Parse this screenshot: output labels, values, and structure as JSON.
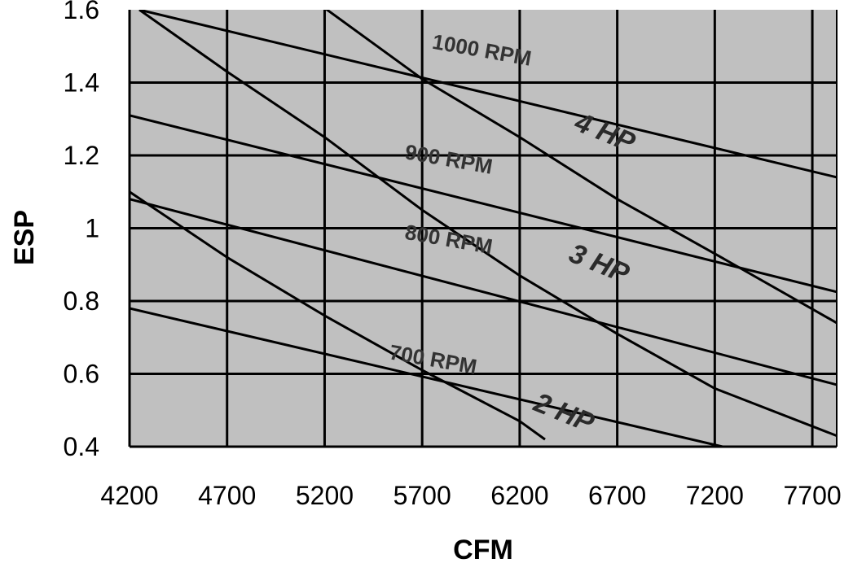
{
  "chart_data": {
    "type": "line",
    "xlabel": "CFM",
    "ylabel": "ESP",
    "xlim": [
      4200,
      7825
    ],
    "ylim": [
      0.4,
      1.6
    ],
    "x_ticks": [
      "4200",
      "4700",
      "5200",
      "5700",
      "6200",
      "6700",
      "7200",
      "7700"
    ],
    "x_tick_values": [
      4200,
      4700,
      5200,
      5700,
      6200,
      6700,
      7200,
      7700
    ],
    "y_ticks": [
      "0.4",
      "0.6",
      "0.8",
      "1",
      "1.2",
      "1.4",
      "1.6"
    ],
    "y_tick_values": [
      0.4,
      0.6,
      0.8,
      1.0,
      1.2,
      1.4,
      1.6
    ],
    "grid": true,
    "background": "#c0c0c0",
    "line_color": "#000000",
    "series": [
      {
        "name": "1000 RPM",
        "x": [
          4250,
          7825
        ],
        "y": [
          1.6,
          1.14
        ]
      },
      {
        "name": "900 RPM",
        "x": [
          4200,
          7825
        ],
        "y": [
          1.31,
          0.825
        ]
      },
      {
        "name": "800 RPM",
        "x": [
          4200,
          7825
        ],
        "y": [
          1.08,
          0.57
        ]
      },
      {
        "name": "700 RPM",
        "x": [
          4200,
          7240
        ],
        "y": [
          0.78,
          0.4
        ]
      },
      {
        "name": "4 HP",
        "x": [
          4200,
          4700,
          5200,
          5700,
          6200,
          6700,
          7200,
          7825
        ],
        "y": [
          1.915,
          1.62,
          1.605,
          1.41,
          1.25,
          1.08,
          0.93,
          0.74
        ]
      },
      {
        "name": "3 HP",
        "x": [
          4250,
          4700,
          5200,
          5700,
          6200,
          6700,
          7200,
          7825
        ],
        "y": [
          1.6,
          1.43,
          1.25,
          1.05,
          0.87,
          0.71,
          0.56,
          0.43
        ]
      },
      {
        "name": "2 HP",
        "x": [
          4200,
          4700,
          5200,
          5700,
          6200,
          6330
        ],
        "y": [
          1.1,
          0.92,
          0.76,
          0.61,
          0.47,
          0.42
        ]
      }
    ],
    "annotations": [
      {
        "text": "1000 RPM",
        "x": 6000,
        "y": 1.47,
        "kind": "rpm",
        "rotate": 10
      },
      {
        "text": "900 RPM",
        "x": 5830,
        "y": 1.17,
        "kind": "rpm",
        "rotate": 10
      },
      {
        "text": "800 RPM",
        "x": 5830,
        "y": 0.95,
        "kind": "rpm",
        "rotate": 10
      },
      {
        "text": "700 RPM",
        "x": 5750,
        "y": 0.62,
        "kind": "rpm",
        "rotate": 10
      },
      {
        "text": "4 HP",
        "x": 6620,
        "y": 1.24,
        "kind": "hp",
        "rotate": 22
      },
      {
        "text": "3 HP",
        "x": 6590,
        "y": 0.88,
        "kind": "hp",
        "rotate": 22
      },
      {
        "text": "2 HP",
        "x": 6410,
        "y": 0.47,
        "kind": "hp",
        "rotate": 22
      }
    ]
  }
}
